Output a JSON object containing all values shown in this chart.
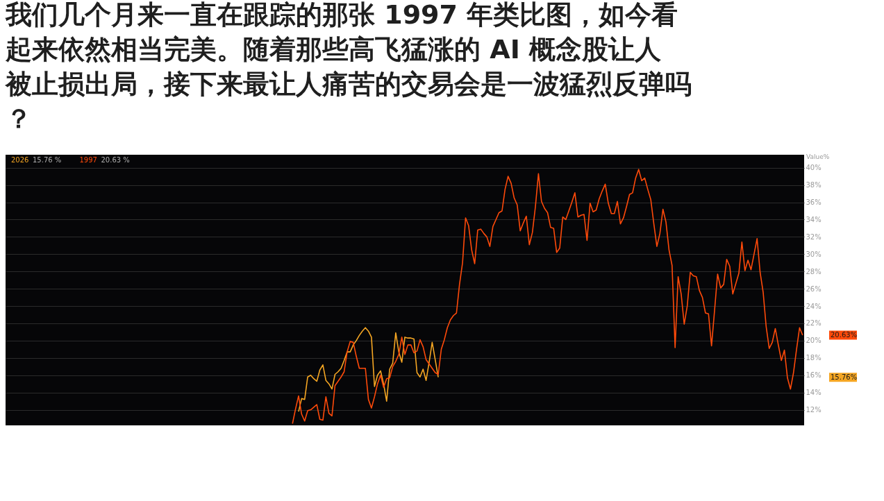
{
  "chart_data": {
    "type": "line",
    "title": "我们几个月来一直在跟踪的那张 1997 年类比图，如今看起来依然相当完美。随着那些高飞猛涨的 AI 概念股让人被止损出局，接下来最让人痛苦的交易会是一波猛烈反弹吗？",
    "ylabel": "Value%",
    "categories": [
      null,
      null,
      null,
      null,
      null,
      null,
      null,
      null,
      null,
      null,
      null,
      null,
      null,
      null,
      null,
      null,
      null,
      null,
      null,
      null,
      null,
      null,
      null,
      null,
      null,
      null,
      null,
      null,
      null,
      null,
      null,
      null,
      null,
      null,
      null,
      null,
      null,
      null,
      null,
      null,
      null,
      null,
      null,
      null,
      null,
      null,
      null,
      null,
      null,
      null,
      null,
      null,
      null,
      null,
      null,
      null,
      null,
      null,
      null,
      null,
      null,
      null,
      null,
      null,
      null,
      null,
      null,
      null,
      null,
      null,
      null,
      null,
      null,
      null,
      null,
      null,
      null,
      null,
      null,
      null,
      null,
      null,
      null,
      null,
      null,
      null,
      null,
      null,
      null,
      null,
      null,
      null,
      null,
      null,
      null,
      null,
      null,
      null,
      null,
      null,
      null,
      null,
      null,
      null,
      null,
      null,
      null,
      null,
      null,
      null,
      null,
      null,
      null,
      null,
      null,
      null,
      null,
      null,
      null,
      null,
      null,
      null,
      null,
      null,
      null,
      null,
      null,
      null,
      null,
      null,
      null,
      null,
      null,
      null,
      null,
      null,
      null,
      null,
      null,
      null,
      null,
      null,
      null,
      null,
      null,
      null,
      null,
      null,
      null,
      null,
      null,
      null,
      null,
      null,
      null,
      null,
      null,
      null,
      null,
      null,
      null,
      null,
      null,
      null,
      null,
      null,
      null,
      null,
      null,
      null,
      null,
      null,
      null,
      null,
      null,
      null,
      null,
      null,
      null,
      null,
      null,
      null,
      null,
      null,
      null,
      null,
      null,
      null,
      null,
      null,
      null,
      null,
      null,
      null,
      null,
      null,
      null,
      null,
      null,
      null,
      null,
      null,
      null,
      null,
      null,
      null,
      null,
      null,
      null,
      null,
      null,
      null,
      null,
      null,
      null,
      null,
      null,
      null,
      null,
      null,
      null,
      null,
      null,
      null,
      null,
      null,
      null,
      null,
      null,
      null,
      null,
      null,
      null,
      null,
      null,
      null,
      null,
      null,
      null,
      null,
      null,
      null,
      null,
      null,
      null,
      null,
      null,
      null,
      null,
      null,
      null,
      null,
      null,
      null,
      null,
      null,
      null,
      null,
      null,
      null,
      null,
      null,
      null
    ],
    "series": [
      {
        "name": "2026",
        "color": "#f5a623",
        "values": [
          null,
          null,
          null,
          null,
          null,
          null,
          null,
          null,
          null,
          null,
          null,
          null,
          null,
          null,
          null,
          null,
          null,
          null,
          null,
          null,
          null,
          null,
          null,
          null,
          null,
          null,
          null,
          null,
          null,
          null,
          null,
          null,
          null,
          null,
          null,
          null,
          null,
          null,
          null,
          null,
          null,
          null,
          null,
          null,
          null,
          null,
          null,
          null,
          null,
          null,
          null,
          null,
          null,
          null,
          null,
          null,
          null,
          null,
          null,
          null,
          null,
          null,
          null,
          null,
          null,
          null,
          null,
          null,
          null,
          null,
          null,
          null,
          null,
          null,
          null,
          null,
          null,
          null,
          null,
          null,
          null,
          null,
          null,
          null,
          null,
          null,
          null,
          null,
          null,
          null,
          null,
          null,
          null,
          null,
          null,
          null,
          11.8,
          13.3,
          13.2,
          15.8,
          16.0,
          15.6,
          15.3,
          16.6,
          17.2,
          15.4,
          15.0,
          14.4,
          16.1,
          16.4,
          16.8,
          17.7,
          18.7,
          18.7,
          19.5,
          20.0,
          20.6,
          21.1,
          21.5,
          21.1,
          20.4,
          14.7,
          16.0,
          16.5,
          15.0,
          13.0,
          16.7,
          17.4,
          20.9,
          18.7,
          17.5,
          20.4,
          20.3,
          20.3,
          20.2,
          16.3,
          15.8,
          16.7,
          15.4,
          17.5,
          19.8,
          17.8,
          15.76,
          null,
          null,
          null,
          null,
          null,
          null,
          null,
          null,
          null,
          null,
          null,
          null,
          null,
          null,
          null,
          null,
          null,
          null,
          null,
          null,
          null,
          null,
          null,
          null,
          null,
          null,
          null,
          null,
          null,
          null,
          null,
          null,
          null,
          null,
          null,
          null,
          null,
          null,
          null,
          null,
          null,
          null,
          null,
          null,
          null,
          null,
          null,
          null,
          null,
          null,
          null,
          null,
          null,
          null,
          null,
          null,
          null,
          null,
          null,
          null,
          null,
          null,
          null,
          null,
          null,
          null,
          null,
          null,
          null,
          null,
          null,
          null,
          null,
          null,
          null,
          null,
          null,
          null,
          null,
          null,
          null,
          null,
          null,
          null,
          null,
          null,
          null,
          null,
          null,
          null,
          null,
          null,
          null,
          null,
          null,
          null,
          null,
          null,
          null,
          null,
          null,
          null,
          null,
          null,
          null,
          null,
          null,
          null,
          null,
          null,
          null,
          null,
          null,
          null,
          null,
          null,
          null,
          null,
          null,
          null
        ]
      },
      {
        "name": "1997",
        "color": "#ff4a0a",
        "values": [
          null,
          null,
          null,
          null,
          null,
          null,
          null,
          null,
          null,
          null,
          null,
          null,
          null,
          null,
          null,
          null,
          null,
          null,
          null,
          null,
          null,
          null,
          null,
          null,
          null,
          null,
          null,
          null,
          null,
          null,
          null,
          null,
          null,
          null,
          null,
          null,
          null,
          null,
          null,
          null,
          null,
          null,
          null,
          null,
          null,
          null,
          null,
          null,
          null,
          null,
          null,
          null,
          null,
          null,
          null,
          null,
          null,
          null,
          null,
          null,
          null,
          null,
          null,
          null,
          null,
          null,
          null,
          null,
          null,
          null,
          null,
          null,
          null,
          null,
          null,
          null,
          null,
          null,
          null,
          null,
          null,
          null,
          null,
          null,
          null,
          null,
          null,
          null,
          null,
          null,
          null,
          null,
          null,
          null,
          10.4,
          12.1,
          13.6,
          11.5,
          10.7,
          11.9,
          12.0,
          12.3,
          12.6,
          10.9,
          10.8,
          13.5,
          11.6,
          11.3,
          14.8,
          15.3,
          15.8,
          16.4,
          18.7,
          19.9,
          19.8,
          18.2,
          16.8,
          16.8,
          16.8,
          13.2,
          12.2,
          13.5,
          15.0,
          16.0,
          14.6,
          15.6,
          15.7,
          17.0,
          17.6,
          18.4,
          20.4,
          18.4,
          19.5,
          19.5,
          18.6,
          18.8,
          20.1,
          19.3,
          17.8,
          17.3,
          16.8,
          16.3,
          16.1,
          19.0,
          20.1,
          21.5,
          22.4,
          22.9,
          23.2,
          26.5,
          29.0,
          34.2,
          33.3,
          30.5,
          28.9,
          32.8,
          32.9,
          32.4,
          32.0,
          30.9,
          33.2,
          34.0,
          34.8,
          35.0,
          37.5,
          39.0,
          38.2,
          36.5,
          35.7,
          32.7,
          33.6,
          34.4,
          31.1,
          32.5,
          35.5,
          39.3,
          36.1,
          35.3,
          34.8,
          33.1,
          33.0,
          30.2,
          30.7,
          34.3,
          34.0,
          35.0,
          36.0,
          37.1,
          34.3,
          34.5,
          34.6,
          31.6,
          35.9,
          34.9,
          35.1,
          36.4,
          37.3,
          38.1,
          35.9,
          34.7,
          34.7,
          36.1,
          33.5,
          34.2,
          35.5,
          36.9,
          37.1,
          38.8,
          39.8,
          38.5,
          38.8,
          37.5,
          36.3,
          33.5,
          30.9,
          32.4,
          35.2,
          33.7,
          30.5,
          28.7,
          19.2,
          27.4,
          25.4,
          21.9,
          24.0,
          27.9,
          27.5,
          27.4,
          25.8,
          25.0,
          23.2,
          23.1,
          19.4,
          23.5,
          27.7,
          26.1,
          26.5,
          29.4,
          28.6,
          25.4,
          26.6,
          27.8,
          31.4,
          28.1,
          29.3,
          28.2,
          30.0,
          31.8,
          27.9,
          25.6,
          21.6,
          19.1,
          19.8,
          21.4,
          19.5,
          17.7,
          18.9,
          15.7,
          14.4,
          16.3,
          19.0,
          21.5,
          20.63
        ]
      }
    ],
    "ylim": [
      10.2,
      41.5
    ],
    "yticks": [
      {
        "value": 12,
        "label": "12%"
      },
      {
        "value": 14,
        "label": "14%"
      },
      {
        "value": 16,
        "label": "16%"
      },
      {
        "value": 18,
        "label": "18%"
      },
      {
        "value": 20,
        "label": "20%"
      },
      {
        "value": 22,
        "label": "22%"
      },
      {
        "value": 24,
        "label": "24%"
      },
      {
        "value": 26,
        "label": "26%"
      },
      {
        "value": 28,
        "label": "28%"
      },
      {
        "value": 30,
        "label": "30%"
      },
      {
        "value": 32,
        "label": "32%"
      },
      {
        "value": 34,
        "label": "34%"
      },
      {
        "value": 36,
        "label": "36%"
      },
      {
        "value": 38,
        "label": "38%"
      },
      {
        "value": 40,
        "label": "40%"
      }
    ],
    "grid": "y",
    "tick_labels": "y",
    "legend": "top left",
    "annotations": [
      "15.76 %",
      "20.63 %",
      "15.76%",
      "20.63%"
    ]
  }
}
